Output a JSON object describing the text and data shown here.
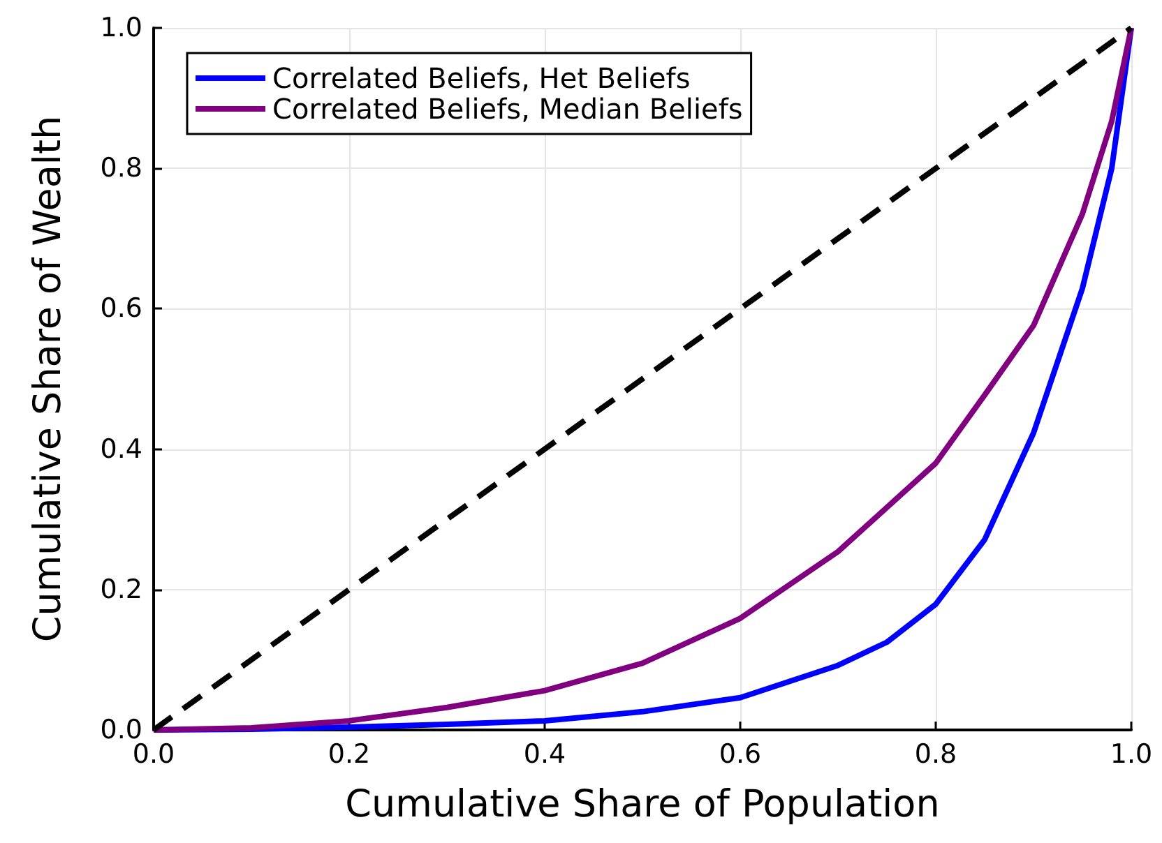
{
  "chart_data": {
    "type": "line",
    "xlabel": "Cumulative Share of Population",
    "ylabel": "Cumulative Share of Wealth",
    "xlim": [
      0,
      1
    ],
    "ylim": [
      0,
      1
    ],
    "xticks": [
      {
        "value": 0,
        "label": "0.0"
      },
      0.2,
      0.4,
      0.6,
      0.8,
      {
        "value": 1,
        "label": "1.0"
      }
    ],
    "yticks": [
      {
        "value": 0,
        "label": "0.0"
      },
      0.2,
      0.4,
      0.6,
      0.8,
      {
        "value": 1,
        "label": "1.0"
      }
    ],
    "grid": true,
    "legend": "top left",
    "marker": "none",
    "series": [
      {
        "name": "Correlated Beliefs, Het Beliefs",
        "color": "#0000ff",
        "x": [
          0,
          0.1,
          0.2,
          0.3,
          0.4,
          0.5,
          0.6,
          0.7,
          0.75,
          0.8,
          0.85,
          0.9,
          0.95,
          0.98,
          1
        ],
        "values": [
          0,
          0.001,
          0.004,
          0.008,
          0.013,
          0.026,
          0.046,
          0.092,
          0.125,
          0.179,
          0.271,
          0.423,
          0.629,
          0.8,
          1
        ]
      },
      {
        "name": "Correlated Beliefs, Median Beliefs",
        "color": "#800080",
        "x": [
          0,
          0.1,
          0.2,
          0.3,
          0.4,
          0.5,
          0.6,
          0.7,
          0.8,
          0.85,
          0.9,
          0.95,
          0.98,
          1
        ],
        "values": [
          0,
          0.003,
          0.013,
          0.032,
          0.056,
          0.095,
          0.159,
          0.254,
          0.38,
          0.477,
          0.576,
          0.735,
          0.867,
          1
        ]
      },
      {
        "color": "#000000",
        "line_style": "dashed",
        "x": [
          0,
          1
        ],
        "values": [
          0,
          1
        ]
      }
    ]
  }
}
